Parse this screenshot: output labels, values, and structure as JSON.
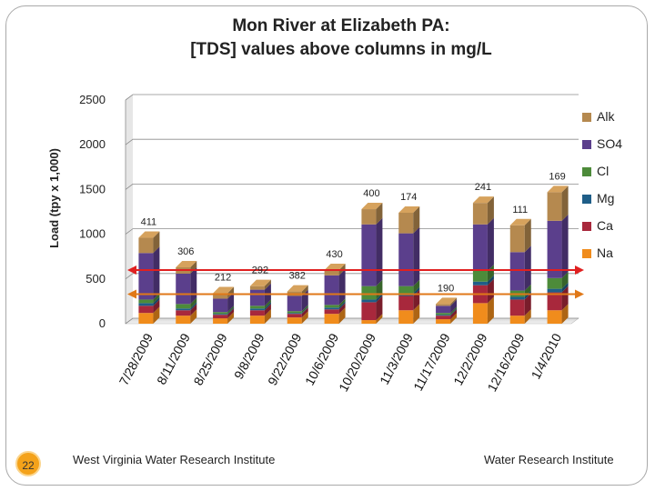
{
  "slide": {
    "page_number": "22",
    "footer_left": "West Virginia Water Research Institute",
    "footer_right": "Water Research Institute"
  },
  "chart_data": {
    "type": "bar",
    "stacked": true,
    "title": "Mon River at Elizabeth PA:",
    "subtitle": "[TDS] values above columns in mg/L",
    "ylabel": "Load (tpy x 1,000)",
    "xlabel": "",
    "ylim": [
      0,
      2500
    ],
    "yticks": [
      0,
      500,
      1000,
      1500,
      2000,
      2500
    ],
    "grid": true,
    "legend": "right",
    "categories": [
      "7/28/2009",
      "8/11/2009",
      "8/25/2009",
      "9/8/2009",
      "9/22/2009",
      "10/6/2009",
      "10/20/2009",
      "11/3/2009",
      "11/17/2009",
      "12/2/2009",
      "12/16/2009",
      "1/4/2010"
    ],
    "tds_labels": [
      "411",
      "306",
      "212",
      "292",
      "382",
      "430",
      "400",
      "174",
      "190",
      "241",
      "111",
      "169"
    ],
    "series": [
      {
        "name": "Na",
        "color": "#f08c1c",
        "values": [
          120,
          90,
          60,
          90,
          70,
          110,
          40,
          150,
          50,
          230,
          90,
          150
        ]
      },
      {
        "name": "Ca",
        "color": "#a8283c",
        "values": [
          80,
          60,
          40,
          60,
          40,
          50,
          200,
          160,
          40,
          200,
          180,
          200
        ]
      },
      {
        "name": "Mg",
        "color": "#1f5e88",
        "values": [
          30,
          20,
          10,
          20,
          10,
          20,
          30,
          30,
          10,
          40,
          30,
          40
        ]
      },
      {
        "name": "Cl",
        "color": "#4d8b3a",
        "values": [
          40,
          50,
          20,
          30,
          20,
          30,
          150,
          80,
          20,
          120,
          70,
          120
        ]
      },
      {
        "name": "SO4",
        "color": "#5b3f8c",
        "values": [
          520,
          340,
          150,
          180,
          170,
          330,
          690,
          590,
          80,
          520,
          430,
          640
        ]
      },
      {
        "name": "Alk",
        "color": "#b5894f",
        "values": [
          170,
          70,
          60,
          40,
          50,
          60,
          170,
          230,
          20,
          240,
          300,
          320
        ]
      }
    ],
    "reference_lines": [
      {
        "color": "#e02020",
        "y_start": 600,
        "y_end": 600
      },
      {
        "color": "#e07818",
        "y_start": 330,
        "y_end": 330
      }
    ]
  }
}
